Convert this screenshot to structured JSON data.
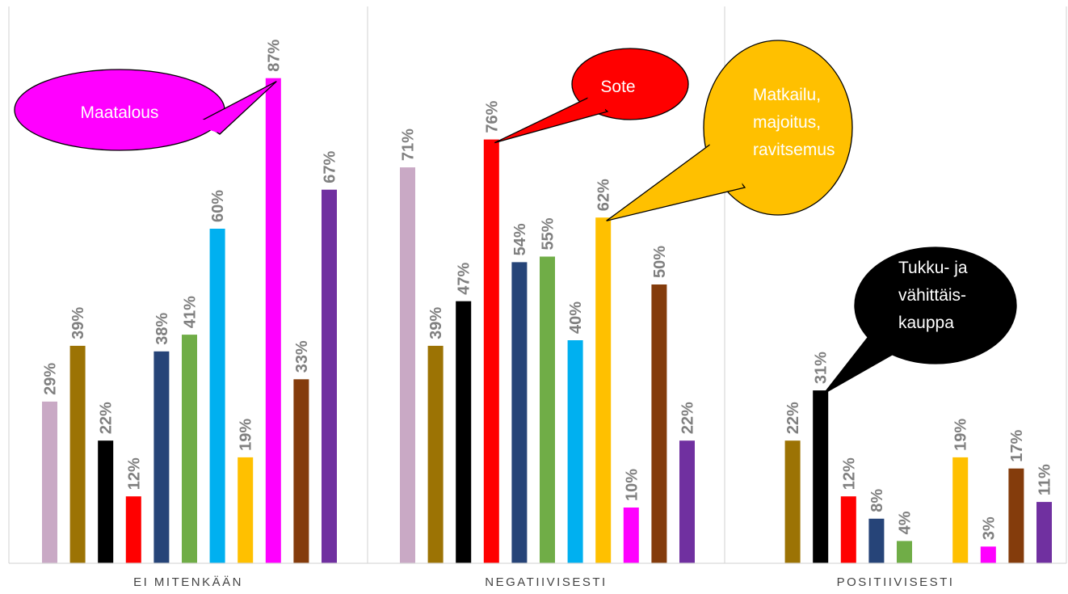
{
  "chart_data": {
    "type": "bar",
    "categories": [
      "EI MITENKÄÄN",
      "NEGATIIVISESTI",
      "POSITIIVISESTI"
    ],
    "ylim": [
      0,
      100
    ],
    "grid": false,
    "legend": "none",
    "series": [
      {
        "color": "#c9a9c5",
        "values": [
          29,
          71,
          null
        ],
        "labels": [
          "29%",
          "71%",
          ""
        ]
      },
      {
        "color": "#9c7304",
        "values": [
          39,
          39,
          22
        ],
        "labels": [
          "39%",
          "39%",
          "22%"
        ]
      },
      {
        "color": "#000000",
        "values": [
          22,
          47,
          31
        ],
        "labels": [
          "22%",
          "47%",
          "31%"
        ]
      },
      {
        "color": "#ff0000",
        "values": [
          12,
          76,
          12
        ],
        "labels": [
          "12%",
          "76%",
          "12%"
        ]
      },
      {
        "color": "#264478",
        "values": [
          38,
          54,
          8
        ],
        "labels": [
          "38%",
          "54%",
          "8%"
        ]
      },
      {
        "color": "#70ad47",
        "values": [
          41,
          55,
          4
        ],
        "labels": [
          "41%",
          "55%",
          "4%"
        ]
      },
      {
        "color": "#00b0f0",
        "values": [
          60,
          40,
          null
        ],
        "labels": [
          "60%",
          "40%",
          ""
        ]
      },
      {
        "color": "#ffc000",
        "values": [
          19,
          62,
          19
        ],
        "labels": [
          "19%",
          "62%",
          "19%"
        ]
      },
      {
        "color": "#ff00ff",
        "values": [
          87,
          10,
          3
        ],
        "labels": [
          "87%",
          "10%",
          "3%"
        ]
      },
      {
        "color": "#843c0c",
        "values": [
          33,
          50,
          17
        ],
        "labels": [
          "33%",
          "50%",
          "17%"
        ]
      },
      {
        "color": "#7030a0",
        "values": [
          67,
          22,
          11
        ],
        "labels": [
          "67%",
          "22%",
          "11%"
        ]
      }
    ],
    "annotations": [
      {
        "text_lines": [
          "Maatalous"
        ],
        "fill": "#ff00ff",
        "text_color": "#ffffff",
        "category": 0,
        "series": 8
      },
      {
        "text_lines": [
          "Sote"
        ],
        "fill": "#ff0000",
        "text_color": "#ffffff",
        "category": 1,
        "series": 3
      },
      {
        "text_lines": [
          "Matkailu,",
          "majoitus,",
          "ravitsemus"
        ],
        "fill": "#ffc000",
        "text_color": "#ffffff",
        "category": 1,
        "series": 7
      },
      {
        "text_lines": [
          "Tukku- ja",
          "vähittäis-",
          "kauppa"
        ],
        "fill": "#000000",
        "text_color": "#ffffff",
        "category": 2,
        "series": 2
      }
    ]
  }
}
